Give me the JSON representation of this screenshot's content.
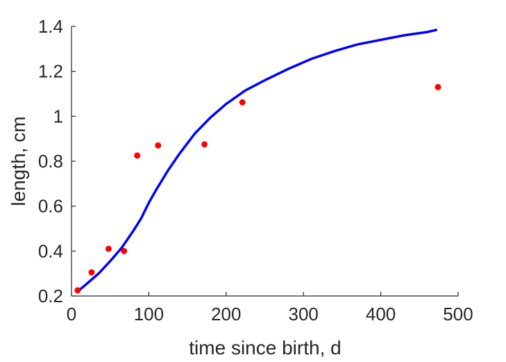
{
  "chart_data": {
    "type": "scatter",
    "xlabel": "time since birth, d",
    "ylabel": "length, cm",
    "xlim": [
      0,
      500
    ],
    "ylim": [
      0.2,
      1.4
    ],
    "xticks": [
      0,
      100,
      200,
      300,
      400,
      500
    ],
    "yticks": [
      0.2,
      0.4,
      0.6,
      0.8,
      1,
      1.2,
      1.4
    ],
    "xtick_labels": [
      "0",
      "100",
      "200",
      "300",
      "400",
      "500"
    ],
    "ytick_labels": [
      "0.2",
      "0.4",
      "0.6",
      "0.8",
      "1",
      "1.2",
      "1.4"
    ],
    "grid": false,
    "series": [
      {
        "kind": "points",
        "color": "#ff0000",
        "x": [
          8,
          26,
          48,
          68,
          85,
          112,
          172,
          221,
          474
        ],
        "y": [
          0.225,
          0.305,
          0.41,
          0.4,
          0.825,
          0.87,
          0.875,
          1.062,
          1.13
        ]
      },
      {
        "kind": "line",
        "color": "#0000ff",
        "x": [
          8,
          20,
          35,
          50,
          65,
          80,
          90,
          100,
          110,
          125,
          140,
          160,
          180,
          200,
          225,
          250,
          280,
          310,
          340,
          370,
          400,
          430,
          460,
          473
        ],
        "y": [
          0.22,
          0.255,
          0.3,
          0.355,
          0.415,
          0.49,
          0.545,
          0.615,
          0.675,
          0.76,
          0.835,
          0.925,
          0.995,
          1.055,
          1.115,
          1.16,
          1.21,
          1.255,
          1.29,
          1.32,
          1.34,
          1.36,
          1.375,
          1.385
        ]
      }
    ]
  }
}
